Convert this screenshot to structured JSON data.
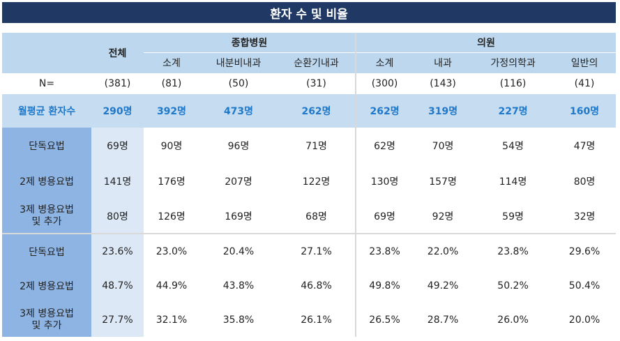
{
  "title": "환자 수 및 비율",
  "header": {
    "total": "전체",
    "group_general": "종합병원",
    "group_clinic": "의원",
    "sub": [
      "소계",
      "내분비내과",
      "순환기내과",
      "소계",
      "내과",
      "가정의학과",
      "일반의"
    ]
  },
  "n_row": {
    "label": "N=",
    "values": [
      "(381)",
      "(81)",
      "(50)",
      "(31)",
      "(300)",
      "(143)",
      "(116)",
      "(41)"
    ]
  },
  "avg_row": {
    "label": "월평균 환자수",
    "values": [
      "290명",
      "392명",
      "473명",
      "262명",
      "262명",
      "319명",
      "227명",
      "160명"
    ]
  },
  "count_rows": [
    {
      "label": "단독요법",
      "values": [
        "69명",
        "90명",
        "96명",
        "71명",
        "62명",
        "70명",
        "54명",
        "47명"
      ]
    },
    {
      "label": "2제 병용요법",
      "values": [
        "141명",
        "176명",
        "207명",
        "122명",
        "130명",
        "157명",
        "114명",
        "80명"
      ]
    },
    {
      "label_line1": "3제 병용요법",
      "label_line2": "및 추가",
      "values": [
        "80명",
        "126명",
        "169명",
        "68명",
        "69명",
        "92명",
        "59명",
        "32명"
      ]
    }
  ],
  "pct_rows": [
    {
      "label": "단독요법",
      "values": [
        "23.6%",
        "23.0%",
        "20.4%",
        "27.1%",
        "23.8%",
        "22.0%",
        "23.8%",
        "29.6%"
      ]
    },
    {
      "label": "2제 병용요법",
      "values": [
        "48.7%",
        "44.9%",
        "43.8%",
        "46.8%",
        "49.8%",
        "49.2%",
        "50.2%",
        "50.4%"
      ]
    },
    {
      "label_line1": "3제 병용요법",
      "label_line2": "및 추가",
      "values": [
        "27.7%",
        "32.1%",
        "35.8%",
        "26.1%",
        "26.5%",
        "28.7%",
        "26.0%",
        "20.0%"
      ]
    }
  ]
}
